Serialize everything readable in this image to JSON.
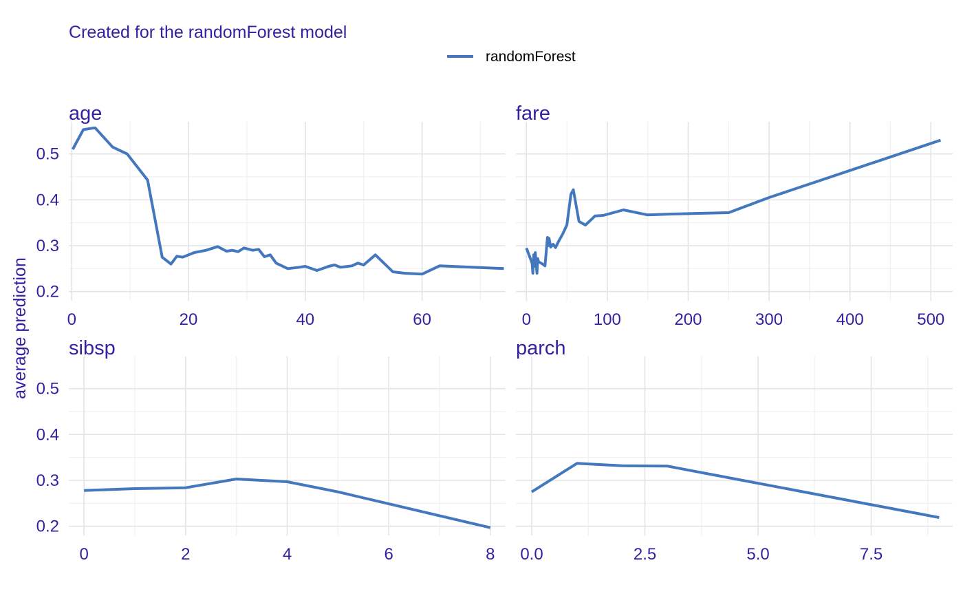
{
  "subtitle": "Created for the randomForest model",
  "legend": {
    "label": "randomForest"
  },
  "colors": {
    "line": "#4378bf",
    "text": "#371ea3",
    "grid_major": "#e4e4e4",
    "grid_minor": "#f0f0f0"
  },
  "chart_data": {
    "type": "line",
    "facets": [
      "age",
      "fare",
      "sibsp",
      "parch"
    ],
    "ylabel": "average prediction",
    "ylim": [
      0.18,
      0.57
    ],
    "y_ticks": [
      0.2,
      0.3,
      0.4,
      0.5
    ],
    "y_tick_labels": [
      "0.2",
      "0.3",
      "0.4",
      "0.5"
    ],
    "legend_position": "top",
    "grid": true,
    "panels": [
      {
        "name": "age",
        "xlim": [
          -0.5,
          74.3
        ],
        "x_ticks": [
          0,
          20,
          40,
          60
        ],
        "x_tick_labels": [
          "0",
          "20",
          "40",
          "60"
        ],
        "series": [
          {
            "name": "randomForest",
            "x": [
              0.17,
              2,
              4,
              7,
              9.5,
              13,
              15.5,
              17,
              18,
              19,
              21,
              23,
              25,
              26.5,
              27.5,
              28.5,
              29.5,
              31,
              32,
              33,
              34,
              35,
              37,
              39,
              40,
              42,
              44,
              45,
              46,
              48,
              49,
              50,
              52,
              55,
              57,
              60,
              63,
              74
            ],
            "y": [
              0.51,
              0.553,
              0.557,
              0.515,
              0.5,
              0.443,
              0.275,
              0.26,
              0.277,
              0.275,
              0.285,
              0.29,
              0.298,
              0.288,
              0.29,
              0.287,
              0.295,
              0.29,
              0.292,
              0.276,
              0.28,
              0.262,
              0.25,
              0.253,
              0.255,
              0.246,
              0.255,
              0.258,
              0.253,
              0.256,
              0.262,
              0.258,
              0.28,
              0.243,
              0.24,
              0.238,
              0.256,
              0.25
            ]
          }
        ]
      },
      {
        "name": "fare",
        "xlim": [
          -13,
          527
        ],
        "x_ticks": [
          0,
          100,
          200,
          300,
          400,
          500
        ],
        "x_tick_labels": [
          "0",
          "100",
          "200",
          "300",
          "400",
          "500"
        ],
        "series": [
          {
            "name": "randomForest",
            "x": [
              0,
              7,
              8,
              9,
              10,
              11,
              13,
              14,
              15,
              20,
              23,
              26,
              27,
              28,
              30,
              33,
              36,
              40,
              45,
              50,
              55,
              58,
              65,
              73,
              85,
              95,
              120,
              150,
              180,
              250,
              300,
              512
            ],
            "y": [
              0.295,
              0.262,
              0.24,
              0.28,
              0.255,
              0.285,
              0.24,
              0.272,
              0.265,
              0.26,
              0.256,
              0.318,
              0.3,
              0.316,
              0.297,
              0.303,
              0.296,
              0.31,
              0.326,
              0.345,
              0.412,
              0.422,
              0.353,
              0.345,
              0.365,
              0.366,
              0.378,
              0.367,
              0.369,
              0.372,
              0.405,
              0.53
            ]
          }
        ]
      },
      {
        "name": "sibsp",
        "xlim": [
          -0.3,
          8.3
        ],
        "x_ticks": [
          0,
          2,
          4,
          6,
          8
        ],
        "x_tick_labels": [
          "0",
          "2",
          "4",
          "6",
          "8"
        ],
        "series": [
          {
            "name": "randomForest",
            "x": [
              0,
              1,
              2,
              3,
              4,
              5,
              8
            ],
            "y": [
              0.278,
              0.282,
              0.284,
              0.303,
              0.297,
              0.275,
              0.197
            ]
          }
        ]
      },
      {
        "name": "parch",
        "xlim": [
          -0.35,
          9.3
        ],
        "x_ticks": [
          0,
          2.5,
          5,
          7.5
        ],
        "x_tick_labels": [
          "0.0",
          "2.5",
          "5.0",
          "7.5"
        ],
        "series": [
          {
            "name": "randomForest",
            "x": [
              0,
              1,
              2,
              3,
              9
            ],
            "y": [
              0.275,
              0.337,
              0.332,
              0.331,
              0.219
            ]
          }
        ]
      }
    ]
  }
}
